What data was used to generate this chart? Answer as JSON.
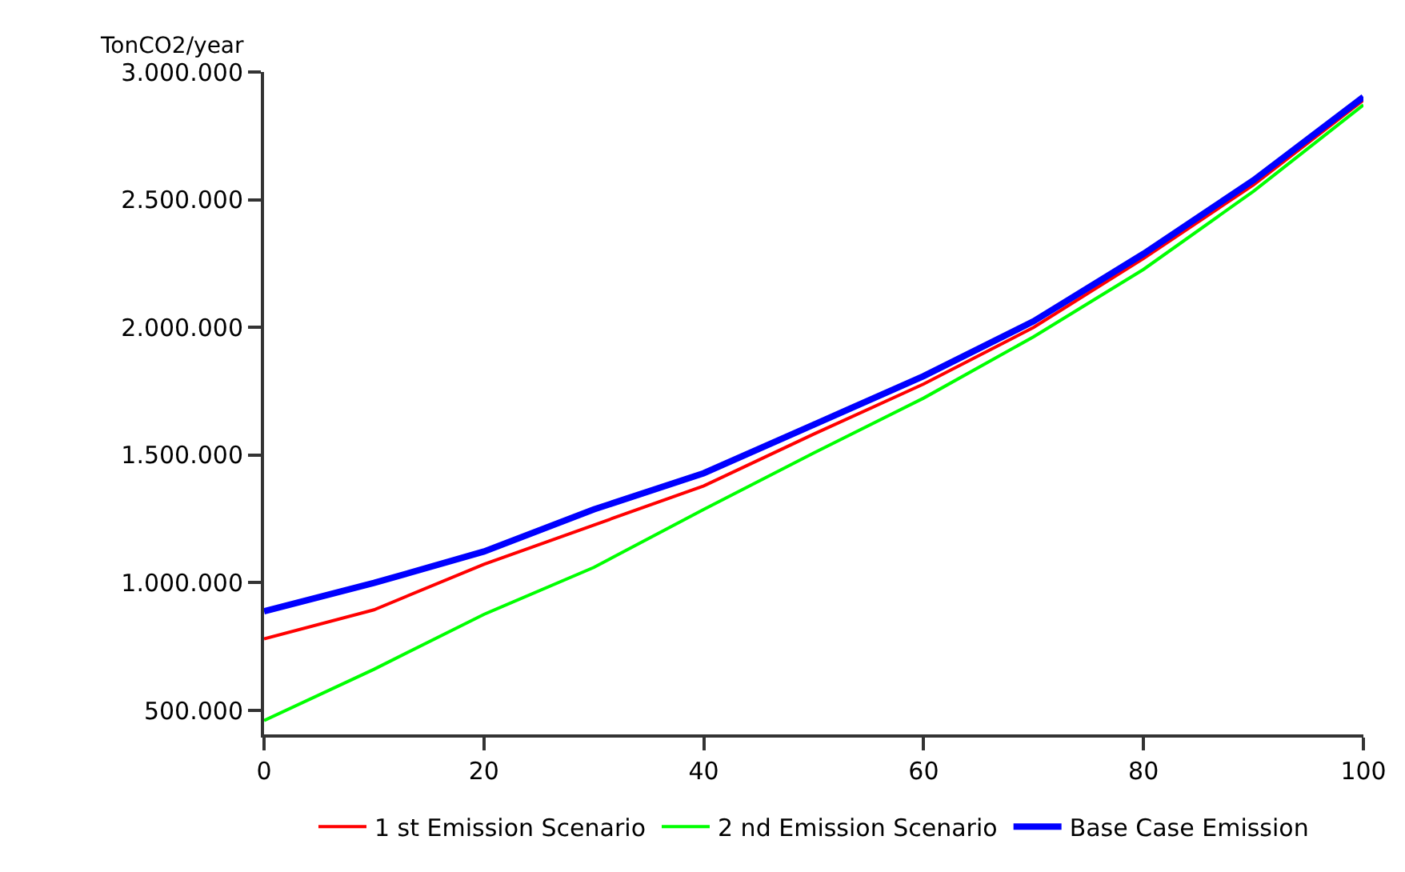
{
  "chart_data": {
    "type": "line",
    "ylabel": "TonCO2/year",
    "x": [
      0,
      10,
      20,
      30,
      40,
      50,
      60,
      70,
      80,
      90,
      100
    ],
    "series": [
      {
        "name": "1 st Emission Scenario",
        "color": "#ff0000",
        "values": [
          780000,
          894000,
          1072000,
          1226000,
          1379000,
          1582000,
          1778000,
          2000000,
          2270000,
          2558000,
          2890000
        ]
      },
      {
        "name": "2 nd Emission Scenario",
        "color": "#00ff00",
        "values": [
          460000,
          661000,
          876000,
          1060000,
          1287000,
          1508000,
          1723000,
          1963000,
          2227000,
          2533000,
          2871000
        ]
      },
      {
        "name": "Base Case Emission",
        "color": "#0000ff",
        "values": [
          888000,
          999000,
          1122000,
          1287000,
          1429000,
          1619000,
          1809000,
          2024000,
          2288000,
          2576000,
          2902000
        ]
      }
    ],
    "xlim": [
      0,
      100
    ],
    "xticks": [
      0,
      20,
      40,
      60,
      80,
      100
    ],
    "ylim": [
      406000,
      3000000
    ],
    "yticks": [
      {
        "value": 500000,
        "label": "500.000"
      },
      {
        "value": 1000000,
        "label": "1.000.000"
      },
      {
        "value": 1500000,
        "label": "1.500.000"
      },
      {
        "value": 2000000,
        "label": "2.000.000"
      },
      {
        "value": 2500000,
        "label": "2.500.000"
      },
      {
        "value": 3000000,
        "label": "3.000.000"
      }
    ],
    "legend": "bottom",
    "marker": "none",
    "line_style": "solid"
  }
}
